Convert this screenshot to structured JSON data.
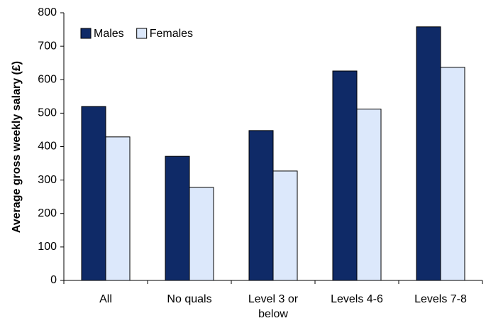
{
  "chart_data": {
    "type": "bar",
    "y_label": "Average gross weekly salary (£)",
    "categories": [
      "All",
      "No quals",
      "Level 3 or below",
      "Levels 4-6",
      "Levels 7-8"
    ],
    "series": [
      {
        "name": "Males",
        "color": "#0f2a67",
        "values": [
          520,
          371,
          448,
          626,
          758
        ]
      },
      {
        "name": "Females",
        "color": "#dce8fb",
        "values": [
          429,
          278,
          327,
          512,
          637
        ]
      }
    ],
    "ylim": [
      0,
      800
    ],
    "yticks": [
      0,
      100,
      200,
      300,
      400,
      500,
      600,
      700,
      800
    ],
    "grid": false,
    "legend": "top-left"
  }
}
